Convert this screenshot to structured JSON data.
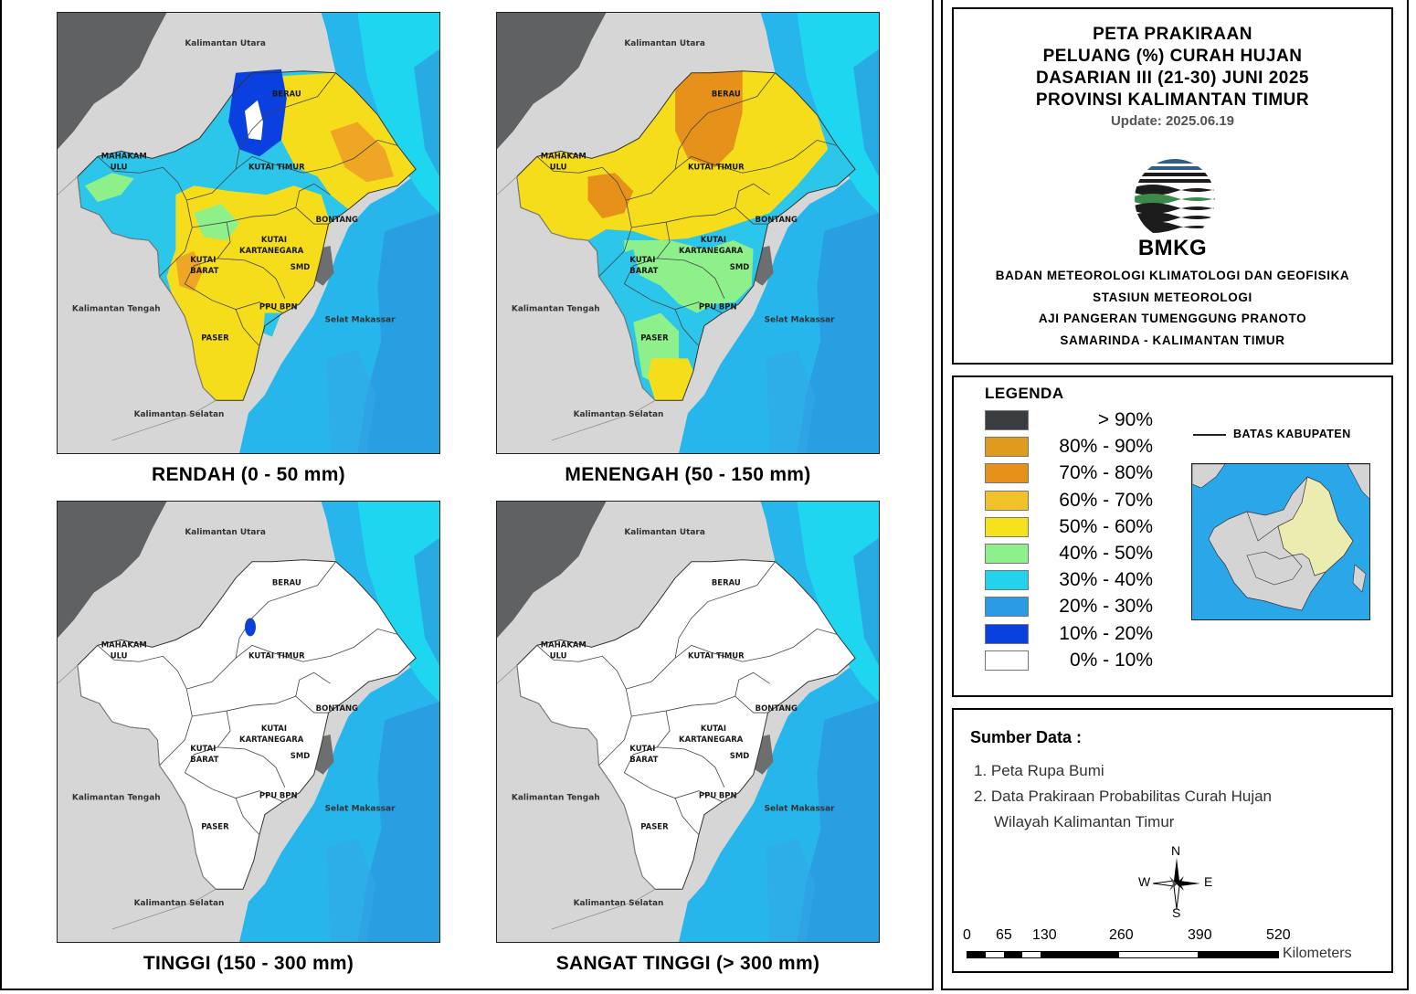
{
  "maps": [
    {
      "caption": "RENDAH (0 - 50 mm)",
      "variant": "rendah"
    },
    {
      "caption": "MENENGAH (50 - 150 mm)",
      "variant": "menengah"
    },
    {
      "caption": "TINGGI (150 - 300 mm)",
      "variant": "tinggi"
    },
    {
      "caption": "SANGAT TINGGI (> 300 mm)",
      "variant": "sangat"
    }
  ],
  "map_labels": {
    "kaltara": "Kalimantan Utara",
    "kalteng": "Kalimantan Tengah",
    "kalsel": "Kalimantan Selatan",
    "selat": "Selat Makassar",
    "berau": "BERAU",
    "kutim": "KUTAI TIMUR",
    "mahakam1": "MAHAKAM",
    "mahakam2": "ULU",
    "bontang": "BONTANG",
    "kukar1": "KUTAI",
    "kukar2": "KARTANEGARA",
    "kubar1": "KUTAI",
    "kubar2": "BARAT",
    "smd": "SMD",
    "ppu": "PPU",
    "bpn": "BPN",
    "paser": "PASER"
  },
  "title": {
    "lines": [
      "PETA PRAKIRAAN",
      "PELUANG (%) CURAH HUJAN",
      "DASARIAN III (21-30) JUNI 2025",
      "PROVINSI KALIMANTAN TIMUR"
    ],
    "update": "Update: 2025.06.19",
    "logo_text": "BMKG",
    "agency_lines": [
      "BADAN METEOROLOGI KLIMATOLOGI DAN GEOFISIKA",
      "STASIUN METEOROLOGI",
      "AJI PANGERAN TUMENGGUNG PRANOTO",
      "SAMARINDA - KALIMANTAN TIMUR"
    ]
  },
  "legend": {
    "title": "LEGENDA",
    "boundary_label": "BATAS KABUPATEN",
    "items": [
      {
        "label": "> 90%",
        "color": "#3a3d40"
      },
      {
        "label": "80% - 90%",
        "color": "#e09a1e"
      },
      {
        "label": "70% - 80%",
        "color": "#e6921a"
      },
      {
        "label": "60% - 70%",
        "color": "#f2c22a"
      },
      {
        "label": "50% - 60%",
        "color": "#f6e21c"
      },
      {
        "label": "40% - 50%",
        "color": "#8ef08a"
      },
      {
        "label": "30% - 40%",
        "color": "#22d3ee"
      },
      {
        "label": "20% - 30%",
        "color": "#2a9ce6"
      },
      {
        "label": "10% - 20%",
        "color": "#0a3fe0"
      },
      {
        "label": "0% - 10%",
        "color": "#ffffff"
      }
    ]
  },
  "sources": {
    "title": "Sumber Data :",
    "items": [
      "1. Peta Rupa Bumi",
      "2. Data Prakiraan Probabilitas Curah Hujan",
      "Wilayah Kalimantan Timur"
    ]
  },
  "compass": {
    "n": "N",
    "s": "S",
    "e": "E",
    "w": "W"
  },
  "scale": {
    "ticks": [
      "0",
      "65",
      "130",
      "260",
      "390",
      "520"
    ],
    "unit": "Kilometers"
  }
}
